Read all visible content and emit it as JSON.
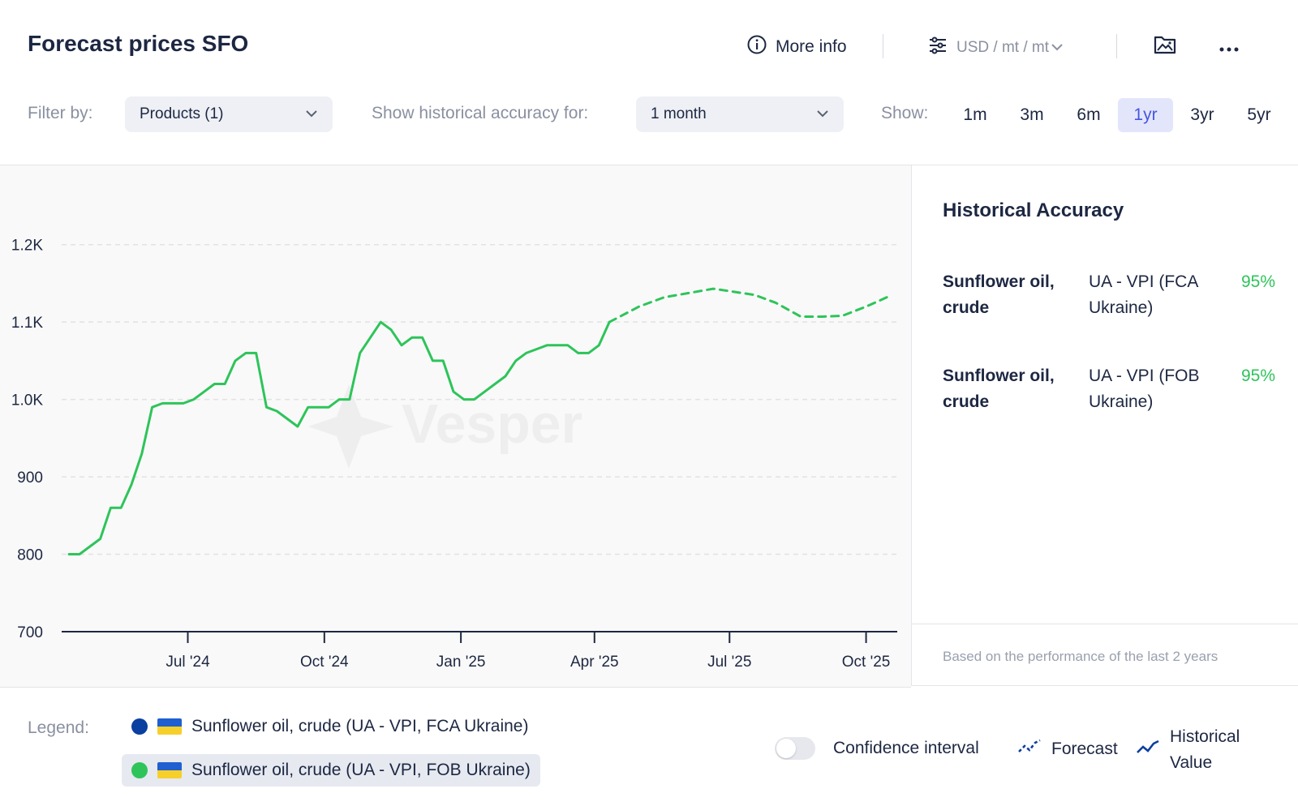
{
  "header": {
    "title": "Forecast prices SFO",
    "more_info": "More info",
    "unit": "USD / mt / mt"
  },
  "filters": {
    "filter_label": "Filter by:",
    "products_value": "Products (1)",
    "accuracy_label": "Show historical accuracy for:",
    "accuracy_value": "1 month",
    "show_label": "Show:",
    "ranges": [
      "1m",
      "3m",
      "6m",
      "1yr",
      "3yr",
      "5yr"
    ],
    "active_range": "1yr"
  },
  "watermark": "Vesper",
  "chart_data": {
    "type": "line",
    "y_ticks": [
      "700",
      "800",
      "900",
      "1.0K",
      "1.1K",
      "1.2K"
    ],
    "ylim": [
      700,
      1250
    ],
    "x_ticks": [
      {
        "label": "Jul '24",
        "date": "2024-07-01"
      },
      {
        "label": "Oct '24",
        "date": "2024-10-01"
      },
      {
        "label": "Jan '25",
        "date": "2025-01-01"
      },
      {
        "label": "Apr '25",
        "date": "2025-04-01"
      },
      {
        "label": "Jul '25",
        "date": "2025-07-01"
      },
      {
        "label": "Oct '25",
        "date": "2025-10-01"
      }
    ],
    "xlim": [
      "2024-04-07",
      "2025-10-22"
    ],
    "grid": true,
    "series": [
      {
        "name": "Historical Value",
        "style": "solid",
        "color": "#2ec45a",
        "points": [
          [
            "2024-04-12",
            800
          ],
          [
            "2024-04-19",
            800
          ],
          [
            "2024-05-03",
            820
          ],
          [
            "2024-05-10",
            860
          ],
          [
            "2024-05-17",
            860
          ],
          [
            "2024-05-24",
            890
          ],
          [
            "2024-05-31",
            930
          ],
          [
            "2024-06-07",
            990
          ],
          [
            "2024-06-14",
            995
          ],
          [
            "2024-06-21",
            995
          ],
          [
            "2024-06-28",
            995
          ],
          [
            "2024-07-05",
            1000
          ],
          [
            "2024-07-12",
            1010
          ],
          [
            "2024-07-19",
            1020
          ],
          [
            "2024-07-26",
            1020
          ],
          [
            "2024-08-02",
            1050
          ],
          [
            "2024-08-09",
            1060
          ],
          [
            "2024-08-16",
            1060
          ],
          [
            "2024-08-23",
            990
          ],
          [
            "2024-08-30",
            985
          ],
          [
            "2024-09-06",
            975
          ],
          [
            "2024-09-13",
            965
          ],
          [
            "2024-09-20",
            990
          ],
          [
            "2024-09-27",
            990
          ],
          [
            "2024-10-04",
            990
          ],
          [
            "2024-10-11",
            1000
          ],
          [
            "2024-10-18",
            1000
          ],
          [
            "2024-10-25",
            1060
          ],
          [
            "2024-11-01",
            1080
          ],
          [
            "2024-11-08",
            1100
          ],
          [
            "2024-11-15",
            1090
          ],
          [
            "2024-11-22",
            1070
          ],
          [
            "2024-11-29",
            1080
          ],
          [
            "2024-12-06",
            1080
          ],
          [
            "2024-12-13",
            1050
          ],
          [
            "2024-12-20",
            1050
          ],
          [
            "2024-12-27",
            1010
          ],
          [
            "2025-01-03",
            1000
          ],
          [
            "2025-01-10",
            1000
          ],
          [
            "2025-01-17",
            1010
          ],
          [
            "2025-01-24",
            1020
          ],
          [
            "2025-01-31",
            1030
          ],
          [
            "2025-02-07",
            1050
          ],
          [
            "2025-02-14",
            1060
          ],
          [
            "2025-02-21",
            1065
          ],
          [
            "2025-02-28",
            1070
          ],
          [
            "2025-03-07",
            1070
          ],
          [
            "2025-03-14",
            1070
          ],
          [
            "2025-03-21",
            1060
          ],
          [
            "2025-03-28",
            1060
          ],
          [
            "2025-04-04",
            1070
          ],
          [
            "2025-04-11",
            1100
          ]
        ]
      },
      {
        "name": "Forecast",
        "style": "dashed",
        "color": "#2ec45a",
        "points": [
          [
            "2025-04-11",
            1100
          ],
          [
            "2025-05-01",
            1120
          ],
          [
            "2025-05-18",
            1132
          ],
          [
            "2025-06-05",
            1138
          ],
          [
            "2025-06-20",
            1143
          ],
          [
            "2025-07-01",
            1140
          ],
          [
            "2025-07-18",
            1135
          ],
          [
            "2025-08-01",
            1125
          ],
          [
            "2025-08-18",
            1107
          ],
          [
            "2025-09-01",
            1107
          ],
          [
            "2025-09-15",
            1108
          ],
          [
            "2025-10-01",
            1120
          ],
          [
            "2025-10-15",
            1132
          ]
        ]
      }
    ]
  },
  "accuracy": {
    "title": "Historical Accuracy",
    "rows": [
      {
        "product": "Sunflower oil, crude",
        "source": "UA - VPI (FCA Ukraine)",
        "pct": "95%"
      },
      {
        "product": "Sunflower oil, crude",
        "source": "UA - VPI (FOB Ukraine)",
        "pct": "95%"
      }
    ],
    "note": "Based on the performance of the last 2 years"
  },
  "legend": {
    "label": "Legend:",
    "items": [
      {
        "text": "Sunflower oil, crude (UA - VPI, FCA Ukraine)",
        "dot_color": "#0b3fa0",
        "selected": false
      },
      {
        "text": "Sunflower oil, crude (UA - VPI, FOB Ukraine)",
        "dot_color": "#2ec45a",
        "selected": true
      }
    ],
    "confidence_label": "Confidence interval",
    "forecast_label": "Forecast",
    "historical_label_1": "Historical",
    "historical_label_2": "Value"
  },
  "colors": {
    "accent": "#4756e0",
    "series_green": "#2ec45a",
    "legend_icon": "#0b3fa0"
  }
}
